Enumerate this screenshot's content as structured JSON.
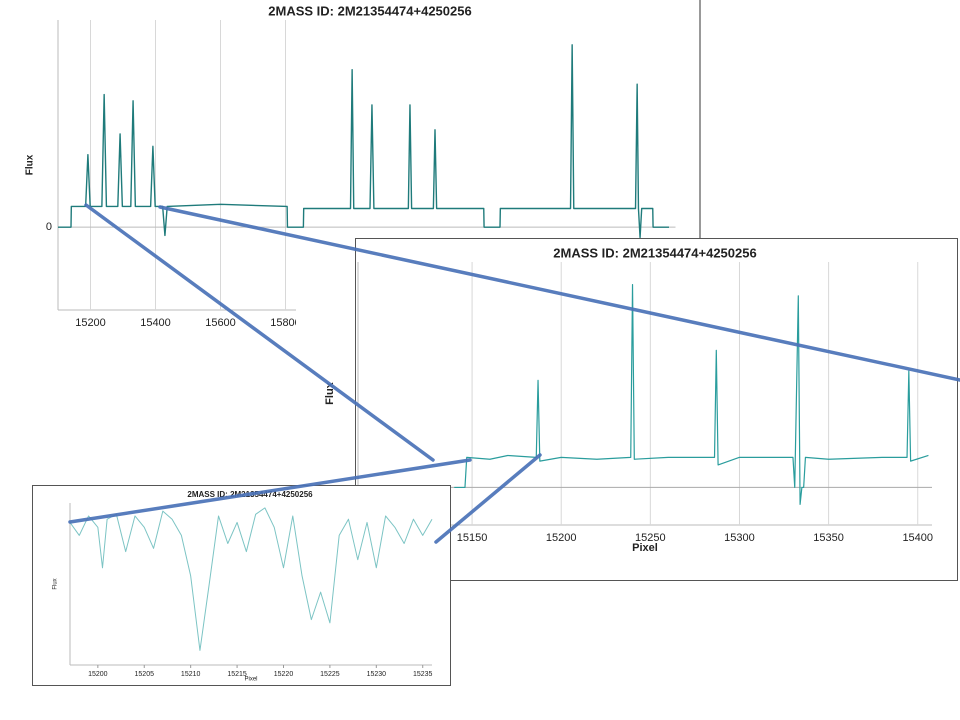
{
  "chart_data": [
    {
      "type": "line",
      "title": "2MASS ID: 2M21354474+4250256",
      "y_label": "Flux",
      "color": "#1f7b7b",
      "grid": true,
      "xlim": [
        15100,
        17000
      ],
      "ylim": [
        -0.4,
        1.0
      ],
      "xticks": [
        15200,
        15400,
        15600,
        15800
      ],
      "yticks": [
        0
      ],
      "x": [
        15100,
        15140,
        15141,
        15185,
        15192,
        15199,
        15235,
        15242,
        15249,
        15284,
        15291,
        15298,
        15324,
        15331,
        15338,
        15385,
        15392,
        15399,
        15422,
        15429,
        15436,
        15600,
        15805,
        15806,
        15855,
        15856,
        16000,
        16005,
        16010,
        16060,
        16066,
        16072,
        16178,
        16183,
        16188,
        16255,
        16260,
        16265,
        16410,
        16411,
        16460,
        16461,
        16677,
        16682,
        16687,
        16877,
        16882,
        16886,
        16891,
        16896,
        16930,
        16931,
        16980
      ],
      "values": [
        0,
        0,
        0.1,
        0.1,
        0.35,
        0.1,
        0.1,
        0.64,
        0.1,
        0.1,
        0.45,
        0.1,
        0.1,
        0.61,
        0.1,
        0.1,
        0.39,
        0.1,
        0.1,
        -0.04,
        0.1,
        0.11,
        0.1,
        0,
        0,
        0.09,
        0.09,
        0.76,
        0.09,
        0.09,
        0.59,
        0.09,
        0.09,
        0.59,
        0.09,
        0.09,
        0.47,
        0.09,
        0.09,
        0,
        0,
        0.09,
        0.09,
        0.88,
        0.09,
        0.09,
        0.69,
        0.09,
        -0.05,
        0.09,
        0.09,
        0,
        0
      ]
    },
    {
      "type": "line",
      "title": "2MASS ID: 2M21354474+4250256",
      "x_label": "Pixel",
      "y_label": "Flux",
      "color": "#2a9d9d",
      "grid": true,
      "xlim": [
        15086,
        15408
      ],
      "ylim": [
        -0.2,
        1.2
      ],
      "xticks": [
        15150,
        15200,
        15250,
        15300,
        15350,
        15400
      ],
      "x": [
        15140,
        15146,
        15147,
        15160,
        15170,
        15186,
        15187,
        15188,
        15200,
        15220,
        15239,
        15240,
        15241,
        15260,
        15286,
        15287,
        15288,
        15300,
        15330,
        15331,
        15333,
        15334,
        15335,
        15336,
        15337,
        15350,
        15380,
        15394,
        15395,
        15396,
        15406
      ],
      "values": [
        0,
        0,
        0.16,
        0.15,
        0.17,
        0.16,
        0.57,
        0.14,
        0.16,
        0.15,
        0.16,
        1.08,
        0.15,
        0.16,
        0.16,
        0.73,
        0.12,
        0.16,
        0.16,
        0,
        1.02,
        -0.09,
        0,
        0,
        0.16,
        0.15,
        0.16,
        0.16,
        0.62,
        0.14,
        0.17
      ]
    },
    {
      "type": "line",
      "title": "2MASS ID: 2M21354474+4250256",
      "x_label": "Pixel",
      "y_label": "Flux",
      "color": "#7cc4c4",
      "grid": false,
      "xlim": [
        15197,
        15236
      ],
      "ylim": [
        0,
        1
      ],
      "xticks": [
        15200,
        15205,
        15210,
        15215,
        15220,
        15225,
        15230,
        15235
      ],
      "x": [
        15197,
        15198,
        15199,
        15200,
        15200.5,
        15201,
        15202,
        15203,
        15204,
        15205,
        15206,
        15207,
        15208,
        15209,
        15210,
        15211,
        15212,
        15213,
        15214,
        15215,
        15216,
        15217,
        15218,
        15219,
        15220,
        15221,
        15222,
        15223,
        15224,
        15225,
        15226,
        15227,
        15228,
        15229,
        15230,
        15231,
        15232,
        15233,
        15234,
        15235,
        15236
      ],
      "values": [
        0.88,
        0.8,
        0.92,
        0.85,
        0.6,
        0.9,
        0.93,
        0.7,
        0.92,
        0.85,
        0.72,
        0.95,
        0.9,
        0.8,
        0.55,
        0.09,
        0.5,
        0.92,
        0.75,
        0.88,
        0.7,
        0.93,
        0.97,
        0.85,
        0.6,
        0.92,
        0.55,
        0.28,
        0.45,
        0.26,
        0.8,
        0.9,
        0.65,
        0.88,
        0.6,
        0.92,
        0.85,
        0.75,
        0.9,
        0.8,
        0.9
      ]
    }
  ]
}
